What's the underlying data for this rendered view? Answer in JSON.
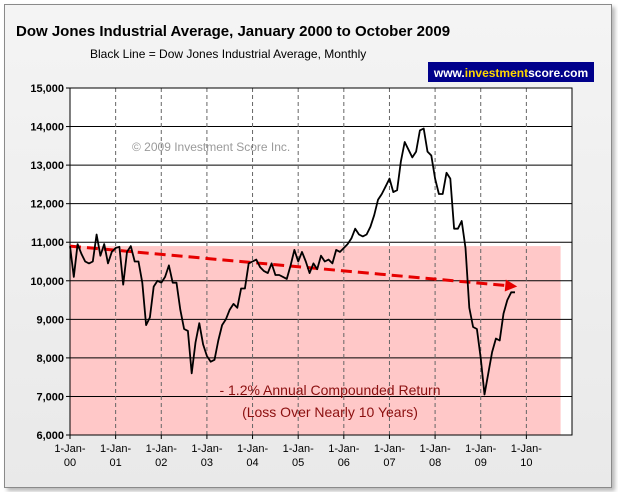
{
  "chart_data": {
    "type": "line",
    "title": "Dow Jones Industrial Average, January 2000 to October 2009",
    "subtitle": "Black Line = Dow Jones Industrial Average, Monthly",
    "watermark": "© 2009 Investment Score Inc.",
    "brand": {
      "prefix": "www.",
      "bold": "investment",
      "suffix": "score.com"
    },
    "annotation": [
      "- 1.2% Annual Compounded Return",
      "(Loss Over Nearly 10 Years)"
    ],
    "ylim": [
      6000,
      15000
    ],
    "yticks": [
      6000,
      7000,
      8000,
      9000,
      10000,
      11000,
      12000,
      13000,
      14000,
      15000
    ],
    "ytick_labels": [
      "6,000",
      "7,000",
      "8,000",
      "9,000",
      "10,000",
      "11,000",
      "12,000",
      "13,000",
      "14,000",
      "15,000"
    ],
    "xrange": [
      2000,
      2011
    ],
    "xticks": [
      {
        "year": 2000,
        "line1": "1-Jan-",
        "line2": "00"
      },
      {
        "year": 2001,
        "line1": "1-Jan-",
        "line2": "01"
      },
      {
        "year": 2002,
        "line1": "1-Jan-",
        "line2": "02"
      },
      {
        "year": 2003,
        "line1": "1-Jan-",
        "line2": "03"
      },
      {
        "year": 2004,
        "line1": "1-Jan-",
        "line2": "04"
      },
      {
        "year": 2005,
        "line1": "1-Jan-",
        "line2": "05"
      },
      {
        "year": 2006,
        "line1": "1-Jan-",
        "line2": "06"
      },
      {
        "year": 2007,
        "line1": "1-Jan-",
        "line2": "07"
      },
      {
        "year": 2008,
        "line1": "1-Jan-",
        "line2": "08"
      },
      {
        "year": 2009,
        "line1": "1-Jan-",
        "line2": "09"
      },
      {
        "year": 2010,
        "line1": "1-Jan-",
        "line2": "10"
      }
    ],
    "shade_region": {
      "x": [
        2000,
        2010.75
      ],
      "y": [
        6000,
        10900
      ]
    },
    "trend_line": {
      "start": [
        2000,
        10900
      ],
      "end": [
        2009.8,
        9850
      ]
    },
    "series": [
      {
        "name": "Dow Jones Industrial Average",
        "start_year": 2000,
        "step_years": 0.0833333,
        "values": [
          10900,
          10100,
          10950,
          10700,
          10500,
          10450,
          10500,
          11200,
          10650,
          10950,
          10450,
          10750,
          10850,
          10880,
          9900,
          10750,
          10900,
          10500,
          10500,
          9950,
          8850,
          9050,
          9850,
          10000,
          9950,
          10100,
          10400,
          9950,
          9950,
          9250,
          8750,
          8700,
          7600,
          8400,
          8900,
          8350,
          8050,
          7900,
          7950,
          8450,
          8850,
          9000,
          9250,
          9400,
          9300,
          9800,
          9800,
          10450,
          10500,
          10550,
          10350,
          10250,
          10200,
          10450,
          10150,
          10150,
          10100,
          10050,
          10400,
          10800,
          10500,
          10750,
          10500,
          10200,
          10450,
          10300,
          10650,
          10500,
          10550,
          10450,
          10800,
          10750,
          10850,
          10950,
          11100,
          11350,
          11200,
          11150,
          11200,
          11400,
          11700,
          12100,
          12250,
          12450,
          12650,
          12300,
          12350,
          13100,
          13600,
          13400,
          13200,
          13350,
          13900,
          13950,
          13350,
          13250,
          12650,
          12250,
          12250,
          12800,
          12650,
          11350,
          11350,
          11550,
          10850,
          9300,
          8800,
          8750,
          8000,
          7050,
          7600,
          8150,
          8500,
          8450,
          9150,
          9500,
          9700,
          9700
        ]
      }
    ],
    "colors": {
      "line": "#000000",
      "shade": "#ffc8c8",
      "trend": "#e60000",
      "plot_bg": "#ffffff",
      "grid": "#000000",
      "ann": "#8b0f0f"
    },
    "brand_colors": {
      "bg": "#00008b",
      "text": "#ffffff",
      "accent": "#ffd700"
    }
  }
}
